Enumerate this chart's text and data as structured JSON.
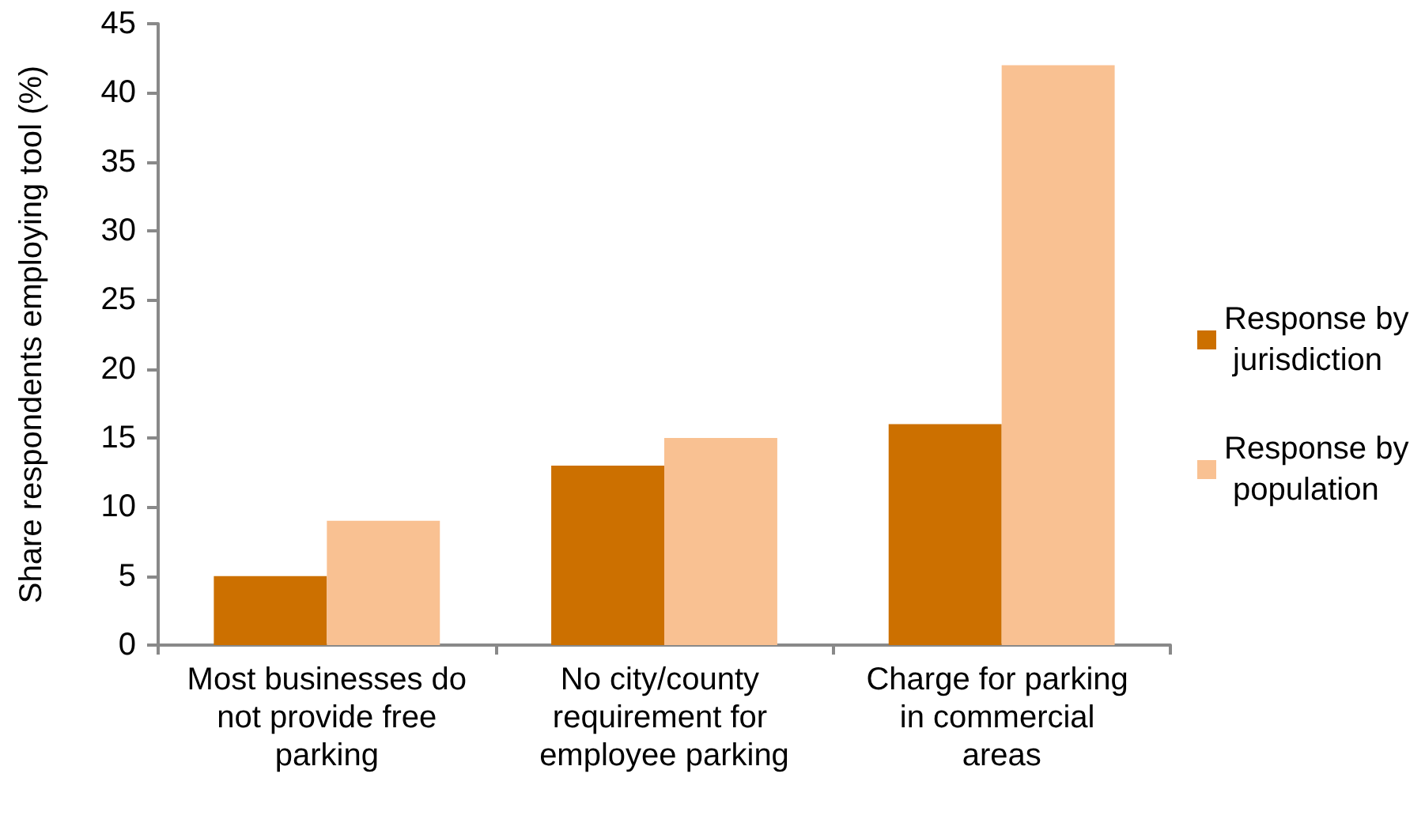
{
  "chart_data": {
    "type": "bar",
    "categories": [
      "Most businesses do not provide free parking",
      "No city/county requirement for employee parking",
      "Charge for parking in commercial areas"
    ],
    "series": [
      {
        "name": "Response by jurisdiction",
        "color": "#cc7000",
        "values": [
          5,
          13,
          16
        ]
      },
      {
        "name": "Response by population",
        "color": "#f9c192",
        "values": [
          9,
          15,
          42
        ]
      }
    ],
    "ylabel": "Share respondents employing tool (%)",
    "ylim": [
      0,
      45
    ],
    "yticks": [
      0,
      5,
      10,
      15,
      20,
      25,
      30,
      35,
      40,
      45
    ],
    "legend": "right"
  }
}
